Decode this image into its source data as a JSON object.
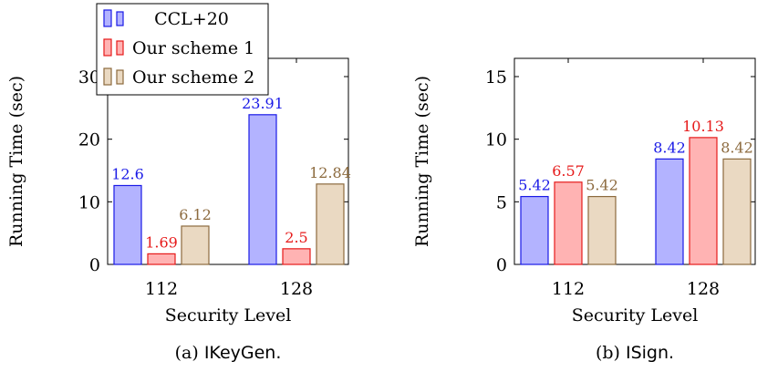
{
  "colors": {
    "ccl": {
      "fill": "#b3b3ff",
      "stroke": "#1a1ae6",
      "label": "#1a1ae6"
    },
    "s1": {
      "fill": "#ffb3b3",
      "stroke": "#e61a1a",
      "label": "#e61a1a"
    },
    "s2": {
      "fill": "#ead9c2",
      "stroke": "#8c6a3e",
      "label": "#8c6a3e"
    }
  },
  "legend": {
    "placement": "top-left",
    "entries": [
      "CCL+20",
      "Our scheme 1",
      "Our scheme 2"
    ]
  },
  "chart_data": [
    {
      "type": "bar",
      "categories": [
        "112",
        "128"
      ],
      "series": [
        {
          "name": "CCL+20",
          "values": [
            12.6,
            23.91
          ],
          "labels": [
            "12.6",
            "23.91"
          ]
        },
        {
          "name": "Our scheme 1",
          "values": [
            1.69,
            2.5
          ],
          "labels": [
            "1.69",
            "2.5"
          ]
        },
        {
          "name": "Our scheme 2",
          "values": [
            6.12,
            12.84
          ],
          "labels": [
            "6.12",
            "12.84"
          ]
        }
      ],
      "xlabel": "Security Level",
      "ylabel": "Running Time (sec)",
      "ylim": [
        0,
        30
      ],
      "yticks": [
        "0",
        "10",
        "20",
        "30"
      ],
      "caption_prefix": "(a)",
      "caption_name": "IKeyGen."
    },
    {
      "type": "bar",
      "categories": [
        "112",
        "128"
      ],
      "series": [
        {
          "name": "CCL+20",
          "values": [
            5.42,
            8.42
          ],
          "labels": [
            "5.42",
            "8.42"
          ]
        },
        {
          "name": "Our scheme 1",
          "values": [
            6.57,
            10.13
          ],
          "labels": [
            "6.57",
            "10.13"
          ]
        },
        {
          "name": "Our scheme 2",
          "values": [
            5.42,
            8.42
          ],
          "labels": [
            "5.42",
            "8.42"
          ]
        }
      ],
      "xlabel": "Security Level",
      "ylabel": "Running Time (sec)",
      "ylim": [
        0,
        15
      ],
      "yticks": [
        "0",
        "5",
        "10",
        "15"
      ],
      "caption_prefix": "(b)",
      "caption_name": "ISign."
    }
  ]
}
